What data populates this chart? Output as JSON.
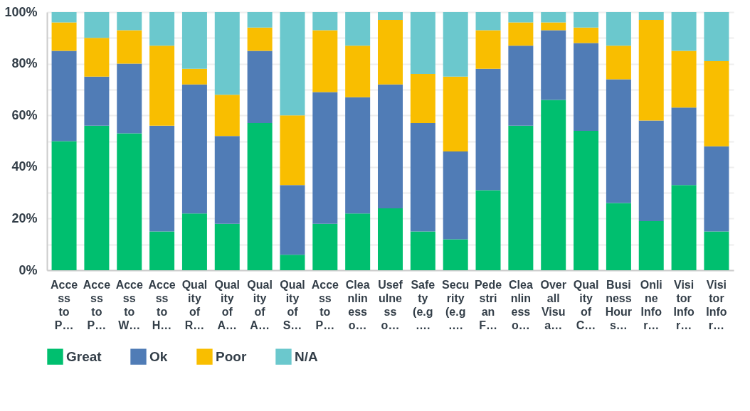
{
  "chart_data": {
    "type": "bar",
    "stacked": true,
    "categories": [
      "Acce\nss\nto\nP…",
      "Acce\nss\nto\nP…",
      "Acce\nss\nto\nW…",
      "Acce\nss\nto\nH…",
      "Qual\nity\nof\nR…",
      "Qual\nity\nof\nA…",
      "Qual\nity\nof\nA…",
      "Qual\nity\nof\nS…",
      "Acce\nss\nto\nP…",
      "Clea\nnlin\ness\no…",
      "Usef\nulne\nss\no…",
      "Safe\nty\n(e.g\n….",
      "Secu\nrity\n(e.g\n….",
      "Pede\nstri\nan\nF…",
      "Clea\nnlin\ness\no…",
      "Over\nall\nVisu\na…",
      "Qual\nity\nof\nC…",
      "Busi\nness\nHour\ns…",
      "Onli\nne\nInfo\nr…",
      "Visi\ntor\nInfo\nr…",
      "Visi\ntor\nInfo\nr…"
    ],
    "series": [
      {
        "name": "Great",
        "color": "#00bf6f",
        "values": [
          50,
          56,
          53,
          15,
          22,
          18,
          57,
          6,
          18,
          22,
          24,
          15,
          12,
          31,
          56,
          66,
          54,
          26,
          19,
          33,
          15
        ]
      },
      {
        "name": "Ok",
        "color": "#507cb6",
        "values": [
          35,
          19,
          27,
          41,
          50,
          34,
          28,
          27,
          51,
          45,
          48,
          42,
          34,
          47,
          31,
          27,
          34,
          48,
          39,
          30,
          33
        ]
      },
      {
        "name": "Poor",
        "color": "#f9be00",
        "values": [
          11,
          15,
          13,
          31,
          6,
          16,
          9,
          27,
          24,
          20,
          25,
          19,
          29,
          15,
          9,
          3,
          6,
          13,
          39,
          22,
          33
        ]
      },
      {
        "name": "N/A",
        "color": "#6bc8cd",
        "values": [
          4,
          10,
          7,
          13,
          22,
          32,
          6,
          40,
          7,
          13,
          3,
          24,
          25,
          7,
          4,
          4,
          6,
          13,
          3,
          15,
          19
        ]
      }
    ],
    "ylim": [
      0,
      100
    ],
    "yticks": [
      {
        "value": 0,
        "label": "0%"
      },
      {
        "value": 10,
        "label": null
      },
      {
        "value": 20,
        "label": "20%"
      },
      {
        "value": 30,
        "label": null
      },
      {
        "value": 40,
        "label": "40%"
      },
      {
        "value": 50,
        "label": null
      },
      {
        "value": 60,
        "label": "60%"
      },
      {
        "value": 70,
        "label": null
      },
      {
        "value": 80,
        "label": "80%"
      },
      {
        "value": 90,
        "label": null
      },
      {
        "value": 100,
        "label": "100%"
      }
    ],
    "grid": "y",
    "legend": "bottom left"
  }
}
